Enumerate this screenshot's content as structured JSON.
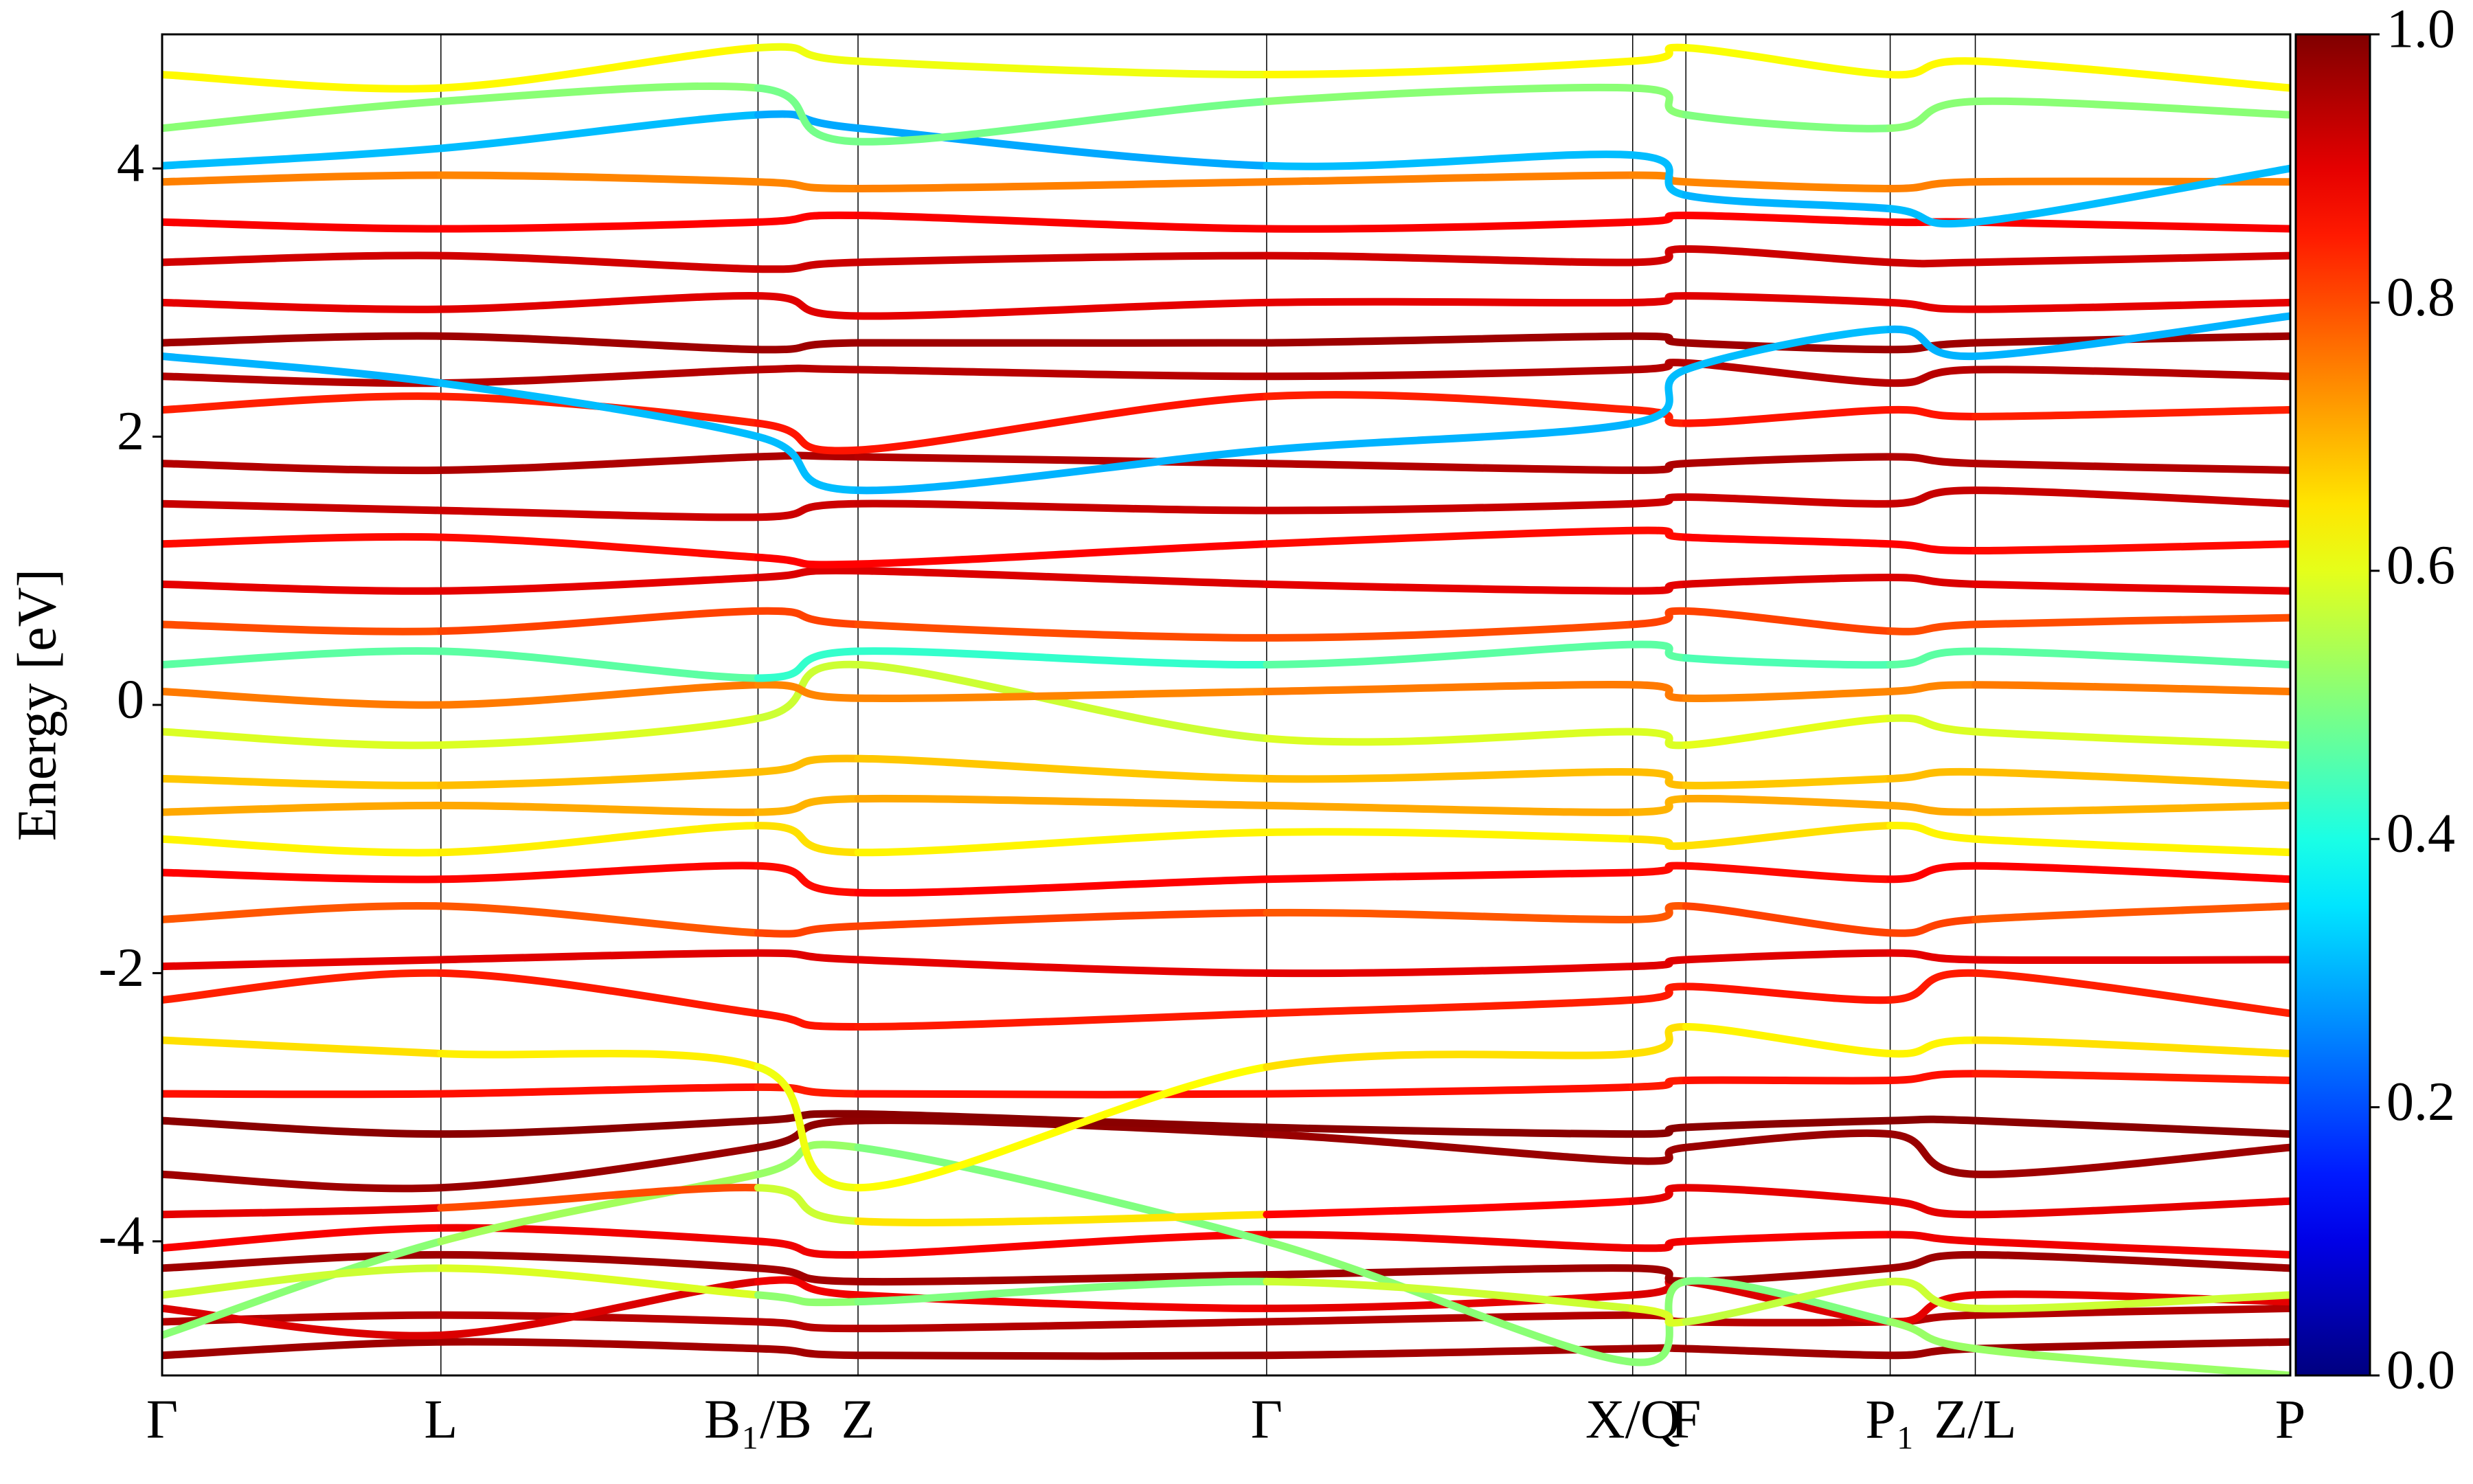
{
  "chart_data": {
    "type": "band-structure",
    "ylabel": "Energy [eV]",
    "xlim": [
      0,
      1
    ],
    "xticks": [
      {
        "value": 0,
        "label": "Γ"
      },
      {
        "value": 0.131,
        "label": "L"
      },
      {
        "value": 0.28,
        "label": "B₁/B"
      },
      {
        "value": 0.327,
        "label": "Z"
      },
      {
        "value": 0.519,
        "label": "Γ"
      },
      {
        "value": 0.691,
        "label": "X/Q"
      },
      {
        "value": 0.716,
        "label": "F"
      },
      {
        "value": 0.812,
        "label": "P₁"
      },
      {
        "value": 0.852,
        "label": "Z/L"
      },
      {
        "value": 1,
        "label": "P"
      }
    ],
    "ylim": [
      -5,
      5
    ],
    "yticks": [
      -4,
      -2,
      0,
      2,
      4
    ],
    "colormap": "jet",
    "clim": [
      0,
      1
    ],
    "cticks": [
      {
        "value": 0,
        "label": "0.0"
      },
      {
        "value": 0.2,
        "label": "0.2"
      },
      {
        "value": 0.4,
        "label": "0.4"
      },
      {
        "value": 0.6,
        "label": "0.6"
      },
      {
        "value": 0.8,
        "label": "0.8"
      },
      {
        "value": 1,
        "label": "1.0"
      }
    ],
    "x": [
      0,
      0.131,
      0.28,
      0.327,
      0.519,
      0.691,
      0.716,
      0.812,
      0.852,
      1
    ],
    "series": [
      {
        "values": [
          -4.85,
          -4.75,
          -4.8,
          -4.85,
          -4.85,
          -4.8,
          -4.8,
          -4.85,
          -4.8,
          -4.75
        ],
        "weights": [
          0.97,
          0.97,
          0.96,
          0.97,
          0.97,
          0.96,
          0.97,
          0.97,
          0.97,
          0.97
        ]
      },
      {
        "values": [
          -4.6,
          -4.55,
          -4.6,
          -4.65,
          -4.6,
          -4.55,
          -4.6,
          -4.6,
          -4.55,
          -4.5
        ],
        "weights": [
          0.95,
          0.95,
          0.94,
          0.95,
          0.95,
          0.95,
          0.94,
          0.95,
          0.95,
          0.95
        ]
      },
      {
        "values": [
          -4.5,
          -4.7,
          -4.3,
          -4.4,
          -4.5,
          -4.4,
          -4.3,
          -4.6,
          -4.4,
          -4.45
        ],
        "weights": [
          0.9,
          0.92,
          0.9,
          0.88,
          0.9,
          0.9,
          0.92,
          0.9,
          0.9,
          0.9
        ]
      },
      {
        "values": [
          -4.2,
          -4.1,
          -4.2,
          -4.3,
          -4.25,
          -4.2,
          -4.3,
          -4.2,
          -4.1,
          -4.2
        ],
        "weights": [
          0.97,
          0.97,
          0.97,
          0.96,
          0.97,
          0.97,
          0.97,
          0.97,
          0.97,
          0.97
        ]
      },
      {
        "values": [
          -4.05,
          -3.9,
          -4.0,
          -4.1,
          -3.95,
          -4.05,
          -4.0,
          -3.95,
          -4.0,
          -4.1
        ],
        "weights": [
          0.88,
          0.88,
          0.9,
          0.88,
          0.88,
          0.9,
          0.88,
          0.88,
          0.9,
          0.88
        ]
      },
      {
        "values": [
          -4.7,
          -4.0,
          -3.5,
          -3.3,
          -4.0,
          -4.9,
          -4.3,
          -4.6,
          -4.8,
          -5.0
        ],
        "weights": [
          0.5,
          0.52,
          0.55,
          0.5,
          0.5,
          0.52,
          0.5,
          0.5,
          0.55,
          0.5
        ]
      },
      {
        "values": [
          -4.4,
          -4.2,
          -4.4,
          -4.45,
          -4.3,
          -4.5,
          -4.6,
          -4.3,
          -4.5,
          -4.4
        ],
        "weights": [
          0.55,
          0.6,
          0.58,
          0.45,
          0.55,
          0.6,
          0.58,
          0.55,
          0.6,
          0.55
        ]
      },
      {
        "values": [
          -3.8,
          -3.75,
          -3.6,
          -3.85,
          -3.8,
          -3.7,
          -3.6,
          -3.7,
          -3.8,
          -3.7
        ],
        "weights": [
          0.9,
          0.9,
          0.7,
          0.45,
          0.85,
          0.9,
          0.9,
          0.9,
          0.9,
          0.9
        ]
      },
      {
        "values": [
          -3.5,
          -3.6,
          -3.3,
          -3.1,
          -3.2,
          -3.4,
          -3.3,
          -3.2,
          -3.5,
          -3.3
        ],
        "weights": [
          0.97,
          0.97,
          0.98,
          0.99,
          0.98,
          0.97,
          0.97,
          0.98,
          0.97,
          0.97
        ]
      },
      {
        "values": [
          -3.1,
          -3.2,
          -3.1,
          -3.05,
          -3.15,
          -3.2,
          -3.15,
          -3.1,
          -3.1,
          -3.2
        ],
        "weights": [
          0.99,
          0.99,
          0.99,
          0.99,
          0.99,
          0.99,
          0.99,
          0.99,
          0.99,
          0.99
        ]
      },
      {
        "values": [
          -2.9,
          -2.9,
          -2.85,
          -2.9,
          -2.9,
          -2.85,
          -2.8,
          -2.8,
          -2.75,
          -2.8
        ],
        "weights": [
          0.85,
          0.87,
          0.85,
          0.85,
          0.87,
          0.85,
          0.85,
          0.87,
          0.85,
          0.85
        ]
      },
      {
        "values": [
          -2.5,
          -2.6,
          -2.7,
          -3.6,
          -2.7,
          -2.6,
          -2.4,
          -2.6,
          -2.5,
          -2.6
        ],
        "weights": [
          0.65,
          0.66,
          0.62,
          0.6,
          0.65,
          0.66,
          0.65,
          0.62,
          0.65,
          0.66
        ]
      },
      {
        "values": [
          -2.2,
          -2.0,
          -2.3,
          -2.4,
          -2.3,
          -2.2,
          -2.1,
          -2.2,
          -2.0,
          -2.3
        ],
        "weights": [
          0.85,
          0.84,
          0.86,
          0.85,
          0.85,
          0.84,
          0.86,
          0.85,
          0.85,
          0.84
        ]
      },
      {
        "values": [
          -1.95,
          -1.9,
          -1.85,
          -1.9,
          -2.0,
          -1.95,
          -1.9,
          -1.85,
          -1.9,
          -1.9
        ],
        "weights": [
          0.9,
          0.9,
          0.91,
          0.9,
          0.9,
          0.9,
          0.91,
          0.9,
          0.9,
          0.9
        ]
      },
      {
        "values": [
          -1.6,
          -1.5,
          -1.7,
          -1.65,
          -1.55,
          -1.6,
          -1.5,
          -1.7,
          -1.6,
          -1.5
        ],
        "weights": [
          0.8,
          0.78,
          0.8,
          0.82,
          0.8,
          0.78,
          0.8,
          0.82,
          0.8,
          0.78
        ]
      },
      {
        "values": [
          -1.25,
          -1.3,
          -1.2,
          -1.4,
          -1.3,
          -1.25,
          -1.2,
          -1.3,
          -1.2,
          -1.3
        ],
        "weights": [
          0.87,
          0.88,
          0.86,
          0.87,
          0.88,
          0.87,
          0.86,
          0.87,
          0.88,
          0.87
        ]
      },
      {
        "values": [
          -1.0,
          -1.1,
          -0.9,
          -1.1,
          -0.95,
          -1.0,
          -1.05,
          -0.9,
          -1.0,
          -1.1
        ],
        "weights": [
          0.65,
          0.62,
          0.66,
          0.65,
          0.62,
          0.65,
          0.66,
          0.65,
          0.62,
          0.65
        ]
      },
      {
        "values": [
          -0.8,
          -0.75,
          -0.8,
          -0.7,
          -0.75,
          -0.8,
          -0.7,
          -0.75,
          -0.8,
          -0.75
        ],
        "weights": [
          0.7,
          0.72,
          0.7,
          0.7,
          0.72,
          0.7,
          0.7,
          0.72,
          0.7,
          0.7
        ]
      },
      {
        "values": [
          -0.55,
          -0.6,
          -0.5,
          -0.4,
          -0.55,
          -0.5,
          -0.6,
          -0.55,
          -0.5,
          -0.6
        ],
        "weights": [
          0.68,
          0.68,
          0.7,
          0.68,
          0.68,
          0.7,
          0.68,
          0.68,
          0.7,
          0.68
        ]
      },
      {
        "values": [
          -0.2,
          -0.3,
          -0.1,
          0.3,
          -0.25,
          -0.2,
          -0.3,
          -0.1,
          -0.2,
          -0.3
        ],
        "weights": [
          0.6,
          0.58,
          0.6,
          0.55,
          0.6,
          0.58,
          0.6,
          0.6,
          0.58,
          0.6
        ]
      },
      {
        "values": [
          0.1,
          0.0,
          0.15,
          0.05,
          0.1,
          0.15,
          0.05,
          0.1,
          0.15,
          0.1
        ],
        "weights": [
          0.75,
          0.76,
          0.75,
          0.74,
          0.75,
          0.76,
          0.75,
          0.74,
          0.75,
          0.76
        ]
      },
      {
        "values": [
          0.3,
          0.4,
          0.2,
          0.4,
          0.3,
          0.45,
          0.35,
          0.3,
          0.4,
          0.3
        ],
        "weights": [
          0.45,
          0.48,
          0.45,
          0.4,
          0.45,
          0.48,
          0.45,
          0.45,
          0.48,
          0.45
        ]
      },
      {
        "values": [
          0.6,
          0.55,
          0.7,
          0.6,
          0.5,
          0.6,
          0.7,
          0.55,
          0.6,
          0.65
        ],
        "weights": [
          0.8,
          0.8,
          0.82,
          0.8,
          0.8,
          0.8,
          0.82,
          0.8,
          0.8,
          0.8
        ]
      },
      {
        "values": [
          0.9,
          0.85,
          0.95,
          1.0,
          0.9,
          0.85,
          0.9,
          0.95,
          0.9,
          0.85
        ],
        "weights": [
          0.9,
          0.9,
          0.9,
          0.92,
          0.9,
          0.9,
          0.9,
          0.92,
          0.9,
          0.9
        ]
      },
      {
        "values": [
          1.2,
          1.25,
          1.1,
          1.05,
          1.2,
          1.3,
          1.25,
          1.2,
          1.15,
          1.2
        ],
        "weights": [
          0.87,
          0.86,
          0.87,
          0.88,
          0.87,
          0.86,
          0.87,
          0.88,
          0.87,
          0.86
        ]
      },
      {
        "values": [
          1.5,
          1.45,
          1.4,
          1.5,
          1.45,
          1.5,
          1.55,
          1.5,
          1.6,
          1.5
        ],
        "weights": [
          0.93,
          0.93,
          0.92,
          0.93,
          0.93,
          0.93,
          0.92,
          0.93,
          0.93,
          0.93
        ]
      },
      {
        "values": [
          1.8,
          1.75,
          1.85,
          1.85,
          1.8,
          1.75,
          1.8,
          1.85,
          1.8,
          1.75
        ],
        "weights": [
          0.95,
          0.95,
          0.96,
          0.95,
          0.95,
          0.95,
          0.96,
          0.95,
          0.95,
          0.95
        ]
      },
      {
        "values": [
          2.2,
          2.3,
          2.1,
          1.9,
          2.3,
          2.2,
          2.1,
          2.2,
          2.15,
          2.2
        ],
        "weights": [
          0.85,
          0.84,
          0.85,
          0.86,
          0.85,
          0.84,
          0.85,
          0.86,
          0.85,
          0.84
        ]
      },
      {
        "values": [
          2.45,
          2.4,
          2.5,
          2.5,
          2.45,
          2.5,
          2.55,
          2.4,
          2.5,
          2.45
        ],
        "weights": [
          0.95,
          0.95,
          0.95,
          0.94,
          0.95,
          0.95,
          0.95,
          0.94,
          0.95,
          0.95
        ]
      },
      {
        "values": [
          2.7,
          2.75,
          2.65,
          2.7,
          2.7,
          2.75,
          2.7,
          2.65,
          2.7,
          2.75
        ],
        "weights": [
          0.97,
          0.97,
          0.97,
          0.97,
          0.97,
          0.97,
          0.97,
          0.97,
          0.97,
          0.97
        ]
      },
      {
        "values": [
          3.0,
          2.95,
          3.05,
          2.9,
          3.0,
          3.0,
          3.05,
          3.0,
          2.95,
          3.0
        ],
        "weights": [
          0.9,
          0.9,
          0.91,
          0.9,
          0.9,
          0.9,
          0.91,
          0.9,
          0.9,
          0.9
        ]
      },
      {
        "values": [
          3.3,
          3.35,
          3.25,
          3.3,
          3.35,
          3.3,
          3.4,
          3.3,
          3.3,
          3.35
        ],
        "weights": [
          0.92,
          0.92,
          0.92,
          0.93,
          0.92,
          0.92,
          0.92,
          0.93,
          0.92,
          0.92
        ]
      },
      {
        "values": [
          3.6,
          3.55,
          3.6,
          3.65,
          3.55,
          3.6,
          3.65,
          3.6,
          3.6,
          3.55
        ],
        "weights": [
          0.88,
          0.88,
          0.87,
          0.88,
          0.88,
          0.88,
          0.87,
          0.88,
          0.88,
          0.88
        ]
      },
      {
        "values": [
          3.9,
          3.95,
          3.9,
          3.85,
          3.9,
          3.95,
          3.9,
          3.85,
          3.9,
          3.9
        ],
        "weights": [
          0.75,
          0.75,
          0.74,
          0.75,
          0.75,
          0.75,
          0.74,
          0.75,
          0.75,
          0.75
        ]
      },
      {
        "values": [
          4.02,
          4.15,
          4.4,
          4.3,
          4.02,
          4.1,
          3.8,
          3.7,
          3.6,
          4.0
        ],
        "weights": [
          0.3,
          0.32,
          0.3,
          0.28,
          0.3,
          0.32,
          0.3,
          0.3,
          0.32,
          0.3
        ]
      },
      {
        "values": [
          4.3,
          4.5,
          4.6,
          4.2,
          4.5,
          4.6,
          4.4,
          4.3,
          4.5,
          4.4
        ],
        "weights": [
          0.5,
          0.52,
          0.5,
          0.48,
          0.5,
          0.52,
          0.5,
          0.5,
          0.52,
          0.5
        ]
      },
      {
        "values": [
          4.7,
          4.6,
          4.9,
          4.8,
          4.7,
          4.8,
          4.9,
          4.7,
          4.8,
          4.6
        ],
        "weights": [
          0.62,
          0.64,
          0.62,
          0.6,
          0.62,
          0.64,
          0.62,
          0.62,
          0.64,
          0.62
        ]
      },
      {
        "values": [
          2.6,
          2.4,
          2.0,
          1.6,
          1.9,
          2.1,
          2.5,
          2.8,
          2.6,
          2.9
        ],
        "weights": [
          0.3,
          0.3,
          0.32,
          0.3,
          0.3,
          0.3,
          0.32,
          0.3,
          0.3,
          0.3
        ]
      }
    ]
  }
}
